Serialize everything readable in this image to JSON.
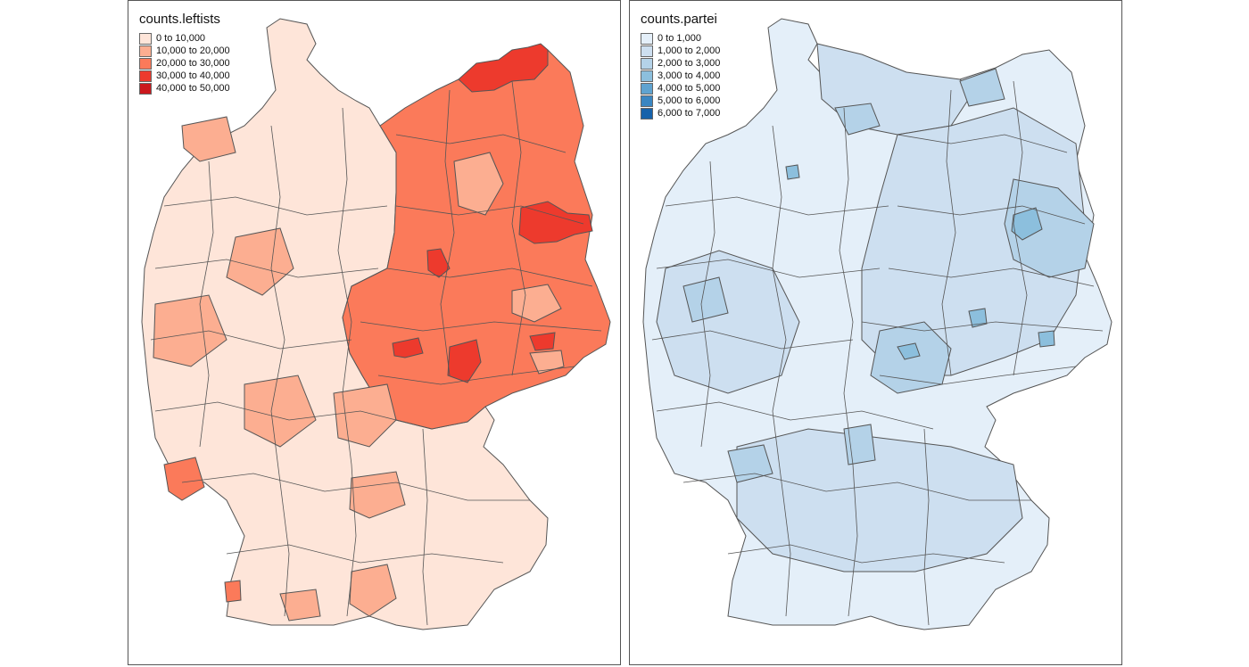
{
  "panels": [
    {
      "id": "leftists",
      "title": "counts.leftists",
      "legend": [
        {
          "label": "0 to 10,000",
          "color": "#fee5d9"
        },
        {
          "label": "10,000 to 20,000",
          "color": "#fcae91"
        },
        {
          "label": "20,000 to 30,000",
          "color": "#fb7a5a"
        },
        {
          "label": "30,000 to 40,000",
          "color": "#ed3a2d"
        },
        {
          "label": "40,000 to 50,000",
          "color": "#cb181d"
        }
      ],
      "border_color": "#555555"
    },
    {
      "id": "partei",
      "title": "counts.partei",
      "legend": [
        {
          "label": "0 to 1,000",
          "color": "#e4eff9"
        },
        {
          "label": "1,000 to 2,000",
          "color": "#cddff0"
        },
        {
          "label": "2,000 to 3,000",
          "color": "#b4d2e8"
        },
        {
          "label": "3,000 to 4,000",
          "color": "#8cbfdd"
        },
        {
          "label": "4,000 to 5,000",
          "color": "#5fa3d0"
        },
        {
          "label": "5,000 to 6,000",
          "color": "#3a86c2"
        },
        {
          "label": "6,000 to 7,000",
          "color": "#1662aa"
        }
      ],
      "border_color": "#555555"
    }
  ]
}
